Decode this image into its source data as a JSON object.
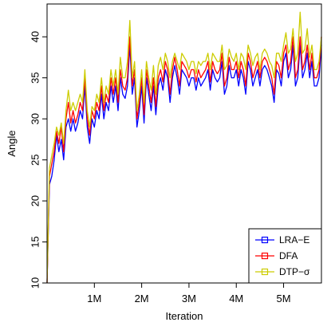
{
  "chart_data": {
    "type": "line",
    "xlabel": "Iteration",
    "ylabel": "Angle",
    "xlim": [
      0,
      5800000
    ],
    "ylim": [
      10,
      44
    ],
    "x_ticks": [
      {
        "value": 1000000,
        "label": "1M"
      },
      {
        "value": 2000000,
        "label": "2M"
      },
      {
        "value": 3000000,
        "label": "3M"
      },
      {
        "value": 4000000,
        "label": "4M"
      },
      {
        "value": 5000000,
        "label": "5M"
      }
    ],
    "y_ticks": [
      {
        "value": 10,
        "label": "10"
      },
      {
        "value": 15,
        "label": "15"
      },
      {
        "value": 20,
        "label": "20"
      },
      {
        "value": 25,
        "label": "25"
      },
      {
        "value": 30,
        "label": "30"
      },
      {
        "value": 35,
        "label": "35"
      },
      {
        "value": 40,
        "label": "40"
      }
    ],
    "grid": false,
    "legend_position": "bottom-right",
    "x": [
      0,
      50000,
      100000,
      150000,
      200000,
      250000,
      300000,
      350000,
      400000,
      450000,
      500000,
      550000,
      600000,
      650000,
      700000,
      750000,
      800000,
      850000,
      900000,
      950000,
      1000000,
      1050000,
      1100000,
      1150000,
      1200000,
      1250000,
      1300000,
      1350000,
      1400000,
      1450000,
      1500000,
      1550000,
      1600000,
      1650000,
      1700000,
      1750000,
      1800000,
      1850000,
      1900000,
      1950000,
      2000000,
      2050000,
      2100000,
      2150000,
      2200000,
      2250000,
      2300000,
      2350000,
      2400000,
      2450000,
      2500000,
      2550000,
      2600000,
      2650000,
      2700000,
      2750000,
      2800000,
      2850000,
      2900000,
      2950000,
      3000000,
      3050000,
      3100000,
      3150000,
      3200000,
      3250000,
      3300000,
      3350000,
      3400000,
      3450000,
      3500000,
      3550000,
      3600000,
      3650000,
      3700000,
      3750000,
      3800000,
      3850000,
      3900000,
      3950000,
      4000000,
      4050000,
      4100000,
      4150000,
      4200000,
      4250000,
      4300000,
      4350000,
      4400000,
      4450000,
      4500000,
      4550000,
      4600000,
      4650000,
      4700000,
      4750000,
      4800000,
      4850000,
      4900000,
      4950000,
      5000000,
      5050000,
      5100000,
      5150000,
      5200000,
      5250000,
      5300000,
      5350000,
      5400000,
      5450000,
      5500000,
      5550000,
      5600000,
      5650000,
      5700000,
      5750000,
      5800000
    ],
    "series": [
      {
        "name": "LRA−E",
        "color": "#0000ff",
        "values": [
          10,
          22,
          23,
          25,
          28,
          26,
          27.5,
          25,
          29,
          30,
          28.5,
          30,
          28.5,
          29.5,
          31,
          30,
          34,
          29,
          27,
          30,
          29,
          31,
          30,
          33,
          30,
          32,
          31,
          34,
          32,
          34,
          31,
          35,
          33,
          32.5,
          34,
          39,
          33,
          35,
          29,
          31,
          34,
          29.5,
          35,
          33,
          31,
          34,
          30.5,
          34,
          35,
          33.5,
          36,
          35,
          32,
          35,
          36.5,
          35,
          33,
          36,
          35.5,
          35,
          34,
          35,
          35,
          33.5,
          35,
          34,
          34.5,
          35,
          36,
          33.5,
          36,
          35,
          34.5,
          35,
          37,
          33,
          34,
          36.5,
          35,
          35,
          36,
          34,
          36,
          35,
          33,
          37,
          36,
          34,
          35,
          36,
          34,
          36,
          36.5,
          36,
          35,
          34,
          32,
          36,
          35.5,
          34,
          37,
          38,
          35,
          36,
          39,
          34,
          35,
          39,
          35,
          36,
          38,
          35,
          37,
          34,
          34,
          35,
          39
        ]
      },
      {
        "name": "DFA",
        "color": "#ff0000",
        "values": [
          10,
          23,
          24.5,
          26,
          28.5,
          27,
          29,
          26,
          30,
          32,
          29.5,
          31,
          29.5,
          30.5,
          32,
          31,
          35,
          30,
          28,
          31,
          30,
          32,
          31,
          34,
          31,
          33,
          32,
          35,
          33,
          35,
          32,
          36,
          34,
          33.5,
          35,
          40,
          34,
          36,
          30,
          32,
          35,
          30.5,
          36,
          34,
          32,
          35,
          31.5,
          35,
          36,
          34.5,
          37,
          36,
          33,
          36,
          37.5,
          36,
          34,
          37,
          36.5,
          36,
          35,
          36,
          36,
          34.5,
          36,
          35,
          35.5,
          36,
          37,
          34.5,
          37,
          36,
          35.5,
          36,
          38,
          34,
          35,
          37.5,
          36,
          36,
          37,
          35,
          37,
          36,
          34,
          38,
          37,
          35,
          36,
          37,
          35,
          37,
          37.5,
          37,
          36,
          35,
          33,
          37,
          36.5,
          35,
          38,
          39,
          36,
          37,
          40,
          35,
          36,
          40,
          36,
          37,
          39,
          36,
          38,
          35,
          35,
          36,
          40
        ]
      },
      {
        "name": "DTP−σ",
        "color": "#cccc00",
        "values": [
          10,
          24,
          25.5,
          27,
          29,
          28,
          29.5,
          27,
          31,
          33.5,
          31,
          32,
          31,
          32,
          33,
          32,
          36,
          31,
          29,
          31.5,
          31,
          33,
          32,
          35,
          32,
          34,
          33,
          36,
          34,
          36,
          33,
          37.5,
          35,
          35,
          37,
          42,
          35,
          37,
          31,
          33,
          36,
          32,
          37,
          35,
          33.5,
          36.5,
          33,
          36.5,
          37.5,
          36,
          38,
          37,
          35,
          37,
          38,
          37,
          36,
          38,
          37.5,
          37,
          36,
          37,
          37,
          35.5,
          37,
          36.5,
          37,
          37,
          38,
          36,
          38,
          37.5,
          37,
          37,
          39,
          36,
          36.5,
          38.5,
          37.5,
          37,
          38,
          36,
          38,
          37.5,
          36,
          39,
          38,
          36.5,
          37.5,
          38,
          36,
          38,
          38.5,
          38,
          37,
          36.5,
          35,
          38,
          38,
          37,
          39,
          40.5,
          38,
          38.5,
          41,
          37,
          38,
          43,
          38,
          38.5,
          41,
          37.5,
          39,
          36,
          36,
          37,
          40
        ]
      }
    ]
  }
}
